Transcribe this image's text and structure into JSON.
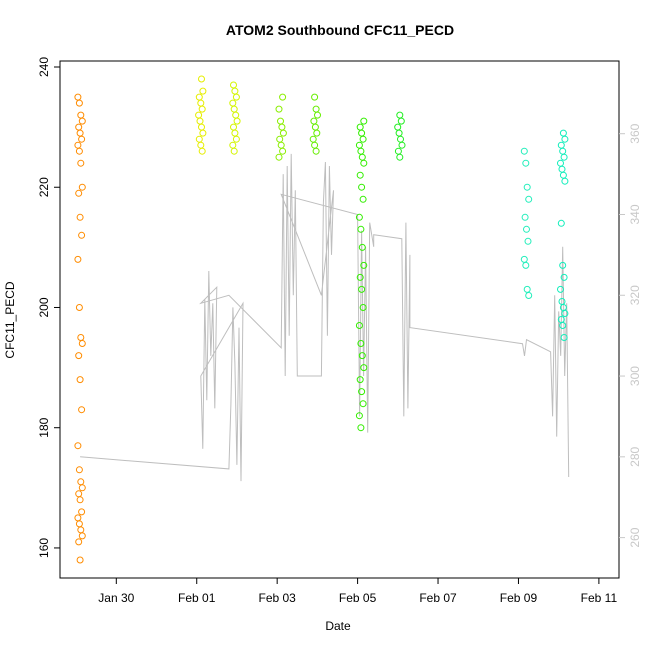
{
  "chart_data": {
    "type": "scatter",
    "title": "ATOM2 Southbound CFC11_PECD",
    "xlabel": "Date",
    "ylabel": "CFC11_PECD",
    "x_ticks": [
      {
        "day": 29.9,
        "label": "Jan 30"
      },
      {
        "day": 31.9,
        "label": "Feb 01"
      },
      {
        "day": 33.9,
        "label": "Feb 03"
      },
      {
        "day": 35.9,
        "label": "Feb 05"
      },
      {
        "day": 37.9,
        "label": "Feb 07"
      },
      {
        "day": 39.9,
        "label": "Feb 09"
      },
      {
        "day": 41.9,
        "label": "Feb 11"
      }
    ],
    "xlim": [
      28.5,
      42.4
    ],
    "ylim": [
      155,
      241
    ],
    "y_ticks": [
      160,
      180,
      200,
      220,
      240
    ],
    "y2lim": [
      250,
      378
    ],
    "y2_ticks": [
      260,
      280,
      300,
      320,
      340,
      360
    ],
    "y2_color": "#c8c8c8",
    "right_axis_series_color": "#bebebe",
    "point_series": [
      {
        "name": "segment-1",
        "color": "#ff8c00",
        "x": 29.0,
        "values": [
          235,
          234,
          232,
          231,
          230,
          229,
          228,
          227,
          226,
          224,
          220,
          219,
          215,
          212,
          208,
          200,
          195,
          194,
          192,
          188,
          183,
          177,
          173,
          171,
          170,
          169,
          168,
          166,
          165,
          164,
          163,
          162,
          161,
          158
        ]
      },
      {
        "name": "segment-2",
        "color": "#e6ee00",
        "x": 32.0,
        "values": [
          238,
          236,
          235,
          234,
          233,
          232,
          231,
          230,
          229,
          228,
          227,
          226
        ]
      },
      {
        "name": "segment-3",
        "color": "#d4f500",
        "x": 32.85,
        "values": [
          237,
          236,
          235,
          234,
          233,
          232,
          231,
          230,
          229,
          228,
          227,
          226
        ]
      },
      {
        "name": "segment-4",
        "color": "#8aee00",
        "x": 34.0,
        "values": [
          235,
          233,
          231,
          230,
          229,
          228,
          227,
          226,
          225
        ]
      },
      {
        "name": "segment-5",
        "color": "#66ee00",
        "x": 34.85,
        "values": [
          235,
          233,
          232,
          231,
          230,
          229,
          228,
          227,
          226
        ]
      },
      {
        "name": "segment-6",
        "color": "#33ee00",
        "x": 36.0,
        "values": [
          231,
          230,
          229,
          228,
          227,
          226,
          225,
          224,
          222,
          220,
          218,
          215,
          213,
          210,
          207,
          205,
          203,
          200,
          197,
          194,
          192,
          190,
          188,
          186,
          184,
          182,
          180
        ]
      },
      {
        "name": "segment-7",
        "color": "#22ee22",
        "x": 36.95,
        "values": [
          232,
          231,
          230,
          229,
          228,
          227,
          226,
          225
        ]
      },
      {
        "name": "segment-8",
        "color": "#22eebb",
        "x": 40.1,
        "values": [
          226,
          224,
          220,
          218,
          215,
          213,
          211,
          208,
          207,
          203,
          202
        ]
      },
      {
        "name": "segment-9",
        "color": "#11eebb",
        "x": 41.0,
        "values": [
          229,
          228,
          227,
          226,
          225,
          224,
          223,
          222,
          221,
          214,
          207,
          205,
          203,
          201,
          200,
          199,
          198,
          197,
          195
        ]
      }
    ],
    "right_axis_line": {
      "name": "right-axis-series",
      "points": [
        [
          29.0,
          280
        ],
        [
          32.7,
          277
        ],
        [
          32.75,
          293
        ],
        [
          32.8,
          317
        ],
        [
          32.85,
          303
        ],
        [
          32.9,
          278
        ],
        [
          32.95,
          312
        ],
        [
          33.0,
          274
        ],
        [
          33.05,
          318
        ],
        [
          32.0,
          300
        ],
        [
          32.05,
          282
        ],
        [
          32.1,
          319
        ],
        [
          32.15,
          294
        ],
        [
          32.2,
          326
        ],
        [
          32.25,
          305
        ],
        [
          32.3,
          318
        ],
        [
          32.35,
          292
        ],
        [
          32.4,
          322
        ],
        [
          32.0,
          318
        ],
        [
          32.7,
          320
        ],
        [
          34.0,
          307
        ],
        [
          34.05,
          350
        ],
        [
          34.1,
          300
        ],
        [
          34.15,
          352
        ],
        [
          34.2,
          310
        ],
        [
          34.25,
          355
        ],
        [
          34.3,
          320
        ],
        [
          34.35,
          346
        ],
        [
          34.4,
          300
        ],
        [
          34.4,
          300
        ],
        [
          35.0,
          300
        ],
        [
          35.05,
          343
        ],
        [
          35.1,
          353
        ],
        [
          35.15,
          310
        ],
        [
          35.2,
          352
        ],
        [
          35.25,
          330
        ],
        [
          35.3,
          346
        ],
        [
          35.0,
          320
        ],
        [
          34.0,
          345
        ],
        [
          35.9,
          340
        ],
        [
          35.95,
          290
        ],
        [
          36.0,
          336
        ],
        [
          36.05,
          300
        ],
        [
          36.1,
          332
        ],
        [
          36.15,
          286
        ],
        [
          36.2,
          338
        ],
        [
          36.3,
          332
        ],
        [
          36.3,
          335
        ],
        [
          37.0,
          334
        ],
        [
          37.05,
          290
        ],
        [
          37.1,
          338
        ],
        [
          37.15,
          292
        ],
        [
          37.2,
          330
        ],
        [
          37.2,
          312
        ],
        [
          40.0,
          308
        ],
        [
          40.05,
          305
        ],
        [
          40.1,
          309
        ],
        [
          40.7,
          306
        ],
        [
          40.75,
          290
        ],
        [
          40.8,
          320
        ],
        [
          40.85,
          285
        ],
        [
          40.9,
          316
        ],
        [
          40.95,
          305
        ],
        [
          41.0,
          332
        ],
        [
          41.05,
          300
        ],
        [
          41.1,
          318
        ],
        [
          41.15,
          275
        ]
      ]
    }
  }
}
